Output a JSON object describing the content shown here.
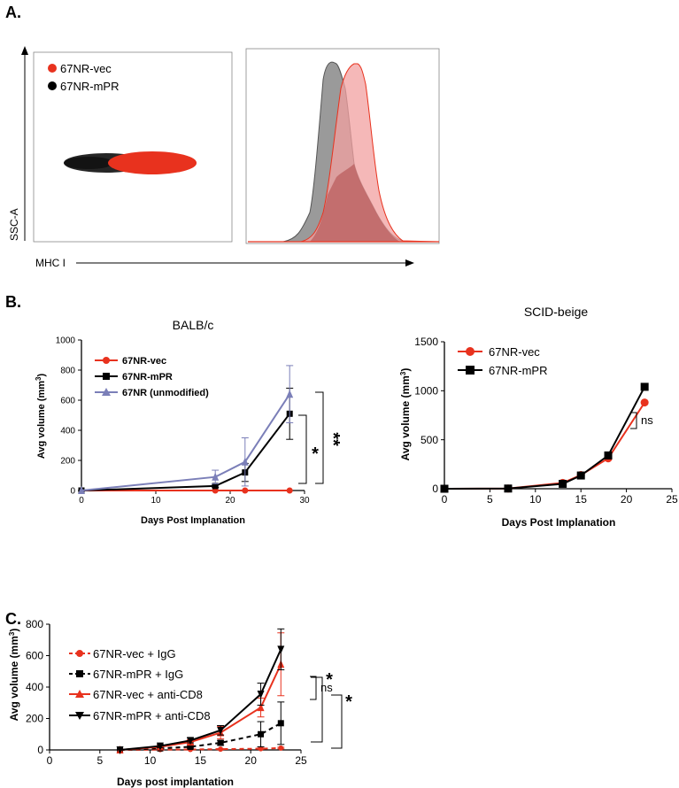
{
  "panel_labels": {
    "a": "A.",
    "b": "B.",
    "c": "C."
  },
  "colors": {
    "vec": "#e8321e",
    "mpr": "#000000",
    "unmod": "#7b7fb8",
    "hist_gray": "#9a9a9a",
    "hist_pink": "#f2a0a0"
  },
  "chart_data": [
    {
      "id": "A-scatter",
      "type": "scatter",
      "xlabel": "MHC I",
      "ylabel": "SSC-A",
      "legend": [
        "67NR-vec",
        "67NR-mPR"
      ],
      "legend_position": "top-left"
    },
    {
      "id": "A-histogram",
      "type": "area",
      "series": [
        {
          "name": "67NR-mPR",
          "color": "gray"
        },
        {
          "name": "67NR-vec",
          "color": "red"
        }
      ]
    },
    {
      "id": "B-balbc",
      "type": "line",
      "title": "BALB/c",
      "xlabel": "Days Post Implanation",
      "ylabel": "Avg volume (mm",
      "ylabel_sup": "3",
      "ylabel_end": ")",
      "xlim": [
        0,
        30
      ],
      "ylim": [
        0,
        1000
      ],
      "xticks": [
        0,
        10,
        20,
        30
      ],
      "yticks": [
        0,
        200,
        400,
        600,
        800,
        1000
      ],
      "legend_position": "top-left",
      "series": [
        {
          "name": "67NR-vec",
          "x": [
            0,
            18,
            22,
            28
          ],
          "y": [
            0,
            0,
            0,
            0
          ],
          "err": [
            0,
            0,
            0,
            0
          ]
        },
        {
          "name": "67NR-mPR",
          "x": [
            0,
            18,
            22,
            28
          ],
          "y": [
            0,
            30,
            120,
            510
          ],
          "err": [
            0,
            10,
            60,
            170
          ]
        },
        {
          "name": "67NR (unmodified)",
          "x": [
            0,
            18,
            22,
            28
          ],
          "y": [
            0,
            90,
            190,
            640
          ],
          "err": [
            0,
            45,
            160,
            190
          ]
        }
      ],
      "annotations": [
        "*",
        "**"
      ]
    },
    {
      "id": "B-scid",
      "type": "line",
      "title": "SCID-beige",
      "xlabel": "Days Post Implanation",
      "ylabel": "Avg volume (mm",
      "ylabel_sup": "3",
      "ylabel_end": ")",
      "xlim": [
        0,
        25
      ],
      "ylim": [
        0,
        1500
      ],
      "xticks": [
        0,
        5,
        10,
        15,
        20,
        25
      ],
      "yticks": [
        0,
        500,
        1000,
        1500
      ],
      "legend_position": "top-left",
      "series": [
        {
          "name": "67NR-vec",
          "x": [
            0,
            7,
            13,
            15,
            18,
            22
          ],
          "y": [
            0,
            2,
            60,
            140,
            310,
            880
          ]
        },
        {
          "name": "67NR-mPR",
          "x": [
            0,
            7,
            13,
            15,
            18,
            22
          ],
          "y": [
            0,
            2,
            50,
            135,
            340,
            1040
          ]
        }
      ],
      "annotations": [
        "ns"
      ]
    },
    {
      "id": "C",
      "type": "line",
      "xlabel": "Days post implantation",
      "ylabel": "Avg volume (mm",
      "ylabel_sup": "3",
      "ylabel_end": ")",
      "xlim": [
        0,
        25
      ],
      "ylim": [
        0,
        800
      ],
      "xticks": [
        0,
        5,
        10,
        15,
        20,
        25
      ],
      "yticks": [
        0,
        200,
        400,
        600,
        800
      ],
      "legend_position": "top-left",
      "series": [
        {
          "name": "67NR-vec + IgG",
          "x": [
            7,
            11,
            14,
            17,
            21,
            23
          ],
          "y": [
            0,
            2,
            3,
            5,
            8,
            12
          ],
          "err": [
            0,
            2,
            2,
            3,
            4,
            5
          ]
        },
        {
          "name": "67NR-mPR + IgG",
          "x": [
            7,
            11,
            14,
            17,
            21,
            23
          ],
          "y": [
            0,
            10,
            20,
            45,
            100,
            170
          ],
          "err": [
            0,
            5,
            8,
            15,
            80,
            135
          ]
        },
        {
          "name": "67NR-vec + anti-CD8",
          "x": [
            7,
            11,
            14,
            17,
            21,
            23
          ],
          "y": [
            0,
            20,
            50,
            110,
            270,
            545
          ],
          "err": [
            0,
            8,
            15,
            40,
            60,
            200
          ]
        },
        {
          "name": "67NR-mPR + anti-CD8",
          "x": [
            7,
            11,
            14,
            17,
            21,
            23
          ],
          "y": [
            0,
            25,
            60,
            125,
            355,
            640
          ],
          "err": [
            0,
            10,
            15,
            30,
            70,
            130
          ]
        }
      ],
      "annotations": [
        "ns",
        "*",
        "*"
      ]
    }
  ]
}
